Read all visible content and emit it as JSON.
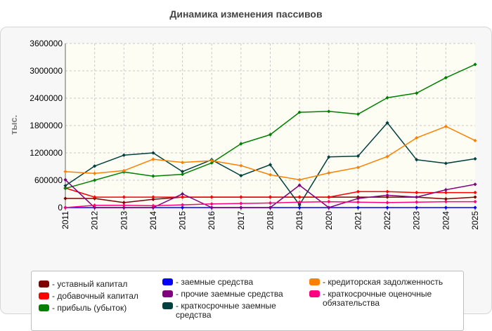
{
  "chart_data": {
    "type": "line",
    "title": "Динамика изменения пассивов",
    "ylabel": "тыс.",
    "xlabel": "",
    "ylim": [
      0,
      3600000
    ],
    "yticks": [
      0,
      600000,
      1200000,
      1800000,
      2400000,
      3000000,
      3600000
    ],
    "grid": true,
    "legend_position": "bottom",
    "categories": [
      "2011",
      "2012",
      "2013",
      "2014",
      "2015",
      "2016",
      "2017",
      "2018",
      "2019",
      "2020",
      "2021",
      "2022",
      "2023",
      "2024",
      "2025"
    ],
    "series": [
      {
        "name": "уставный капитал",
        "color": "#800000",
        "values": [
          200000,
          200000,
          110000,
          180000,
          230000,
          230000,
          230000,
          230000,
          230000,
          230000,
          230000,
          230000,
          230000,
          190000,
          230000
        ]
      },
      {
        "name": "добавочный капитал",
        "color": "#ff0000",
        "values": [
          430000,
          230000,
          230000,
          230000,
          230000,
          230000,
          230000,
          230000,
          230000,
          230000,
          350000,
          350000,
          330000,
          330000,
          330000
        ]
      },
      {
        "name": "прибыль (убыток)",
        "color": "#008000",
        "values": [
          420000,
          600000,
          780000,
          690000,
          730000,
          980000,
          1400000,
          1600000,
          2090000,
          2110000,
          2050000,
          2410000,
          2510000,
          2850000,
          3140000
        ]
      },
      {
        "name": "заемные средства",
        "color": "#0000ff",
        "values": [
          0,
          0,
          0,
          0,
          0,
          0,
          0,
          0,
          0,
          0,
          0,
          0,
          0,
          0,
          0
        ]
      },
      {
        "name": "прочие заемные средства",
        "color": "#800080",
        "values": [
          610000,
          0,
          0,
          0,
          300000,
          0,
          0,
          0,
          490000,
          0,
          200000,
          270000,
          230000,
          390000,
          510000
        ]
      },
      {
        "name": "краткосрочные заемные средства",
        "color": "#004040",
        "values": [
          480000,
          910000,
          1150000,
          1200000,
          790000,
          1050000,
          700000,
          940000,
          60000,
          1110000,
          1130000,
          1860000,
          1050000,
          970000,
          1070000
        ]
      },
      {
        "name": "кредиторская задолженность",
        "color": "#ff8000",
        "values": [
          790000,
          750000,
          810000,
          1060000,
          990000,
          1030000,
          920000,
          720000,
          610000,
          760000,
          880000,
          1120000,
          1530000,
          1780000,
          1470000
        ]
      },
      {
        "name": "краткосрочные оценочные обязательства",
        "color": "#ff0080",
        "values": [
          0,
          50000,
          50000,
          40000,
          60000,
          80000,
          90000,
          100000,
          120000,
          130000,
          120000,
          110000,
          120000,
          130000,
          130000
        ]
      }
    ]
  }
}
